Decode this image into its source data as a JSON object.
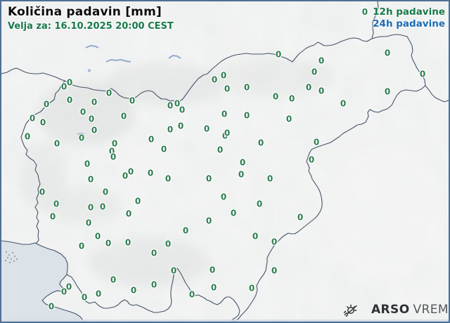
{
  "header": {
    "title": "Količina padavin [mm]",
    "subtitle": "Velja za: 16.10.2025 20:00 CEST"
  },
  "legend": {
    "sample_value": "0",
    "item_12h": "12h padavine",
    "item_24h": "24h padavine",
    "color_12h": "#17794a",
    "color_24h": "#1b6cb5"
  },
  "branding": {
    "agency": "ARSO",
    "product": "VREME"
  },
  "map": {
    "station_value_color": "#2a7b4d",
    "stations": {
      "value": "0",
      "positions": [
        [
          97,
          116
        ],
        [
          89,
          122
        ],
        [
          153,
          131
        ],
        [
          64,
          147
        ],
        [
          97,
          141
        ],
        [
          132,
          144
        ],
        [
          116,
          158
        ],
        [
          44,
          167
        ],
        [
          59,
          173
        ],
        [
          128,
          168
        ],
        [
          174,
          164
        ],
        [
          186,
          142
        ],
        [
          240,
          149
        ],
        [
          250,
          146
        ],
        [
          257,
          155
        ],
        [
          303,
          112
        ],
        [
          316,
          106
        ],
        [
          321,
          125
        ],
        [
          317,
          161
        ],
        [
          240,
          183
        ],
        [
          255,
          178
        ],
        [
          292,
          182
        ],
        [
          318,
          192
        ],
        [
          37,
          193
        ],
        [
          79,
          203
        ],
        [
          114,
          195
        ],
        [
          132,
          184
        ],
        [
          161,
          203
        ],
        [
          157,
          214
        ],
        [
          159,
          222
        ],
        [
          213,
          197
        ],
        [
          231,
          211
        ],
        [
          311,
          212
        ],
        [
          122,
          232
        ],
        [
          127,
          254
        ],
        [
          176,
          249
        ],
        [
          184,
          243
        ],
        [
          212,
          245
        ],
        [
          237,
          253
        ],
        [
          295,
          253
        ],
        [
          394,
          76
        ],
        [
          549,
          74
        ],
        [
          455,
          85
        ],
        [
          445,
          101
        ],
        [
          599,
          104
        ],
        [
          437,
          123
        ],
        [
          455,
          128
        ],
        [
          349,
          123
        ],
        [
          390,
          136
        ],
        [
          413,
          139
        ],
        [
          549,
          129
        ],
        [
          486,
          146
        ],
        [
          349,
          163
        ],
        [
          409,
          168
        ],
        [
          321,
          188
        ],
        [
          369,
          202
        ],
        [
          448,
          201
        ],
        [
          441,
          226
        ],
        [
          343,
          230
        ],
        [
          341,
          247
        ],
        [
          382,
          253
        ],
        [
          58,
          272
        ],
        [
          78,
          289
        ],
        [
          73,
          307
        ],
        [
          148,
          272
        ],
        [
          127,
          294
        ],
        [
          144,
          293
        ],
        [
          194,
          285
        ],
        [
          181,
          303
        ],
        [
          124,
          316
        ],
        [
          137,
          335
        ],
        [
          152,
          345
        ],
        [
          180,
          344
        ],
        [
          114,
          349
        ],
        [
          237,
          346
        ],
        [
          217,
          359
        ],
        [
          262,
          327
        ],
        [
          295,
          313
        ],
        [
          316,
          279
        ],
        [
          300,
          383
        ],
        [
          245,
          384
        ],
        [
          217,
          404
        ],
        [
          188,
          412
        ],
        [
          159,
          397
        ],
        [
          138,
          417
        ],
        [
          118,
          422
        ],
        [
          96,
          407
        ],
        [
          89,
          414
        ],
        [
          71,
          435
        ],
        [
          271,
          418
        ],
        [
          302,
          408
        ],
        [
          367,
          289
        ],
        [
          330,
          302
        ],
        [
          425,
          308
        ],
        [
          361,
          335
        ],
        [
          388,
          343
        ],
        [
          388,
          384
        ],
        [
          356,
          409
        ]
      ]
    }
  }
}
